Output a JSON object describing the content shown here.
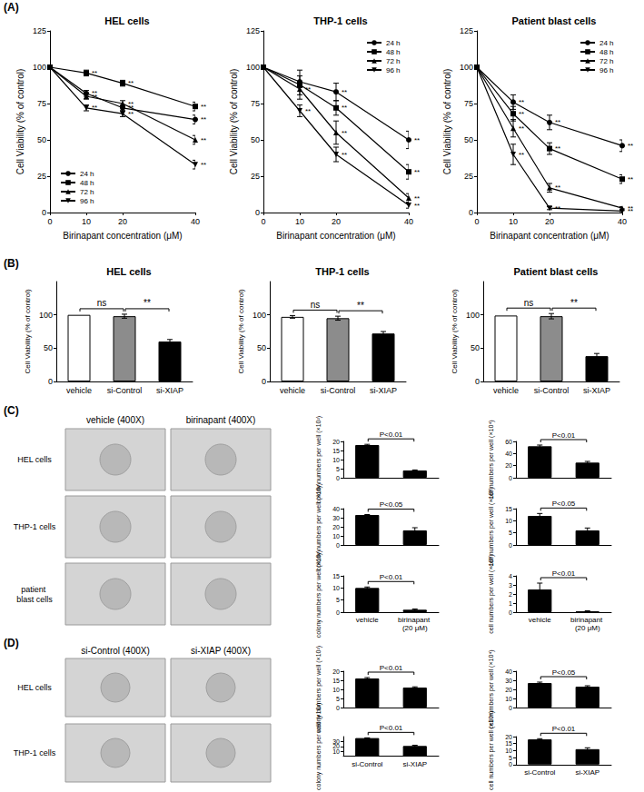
{
  "panel_labels": [
    "(A)",
    "(B)",
    "(C)",
    "(D)"
  ],
  "image_grids": [
    {
      "columns": [
        "vehicle (400X)",
        "birinapant (400X)"
      ],
      "rows": [
        "HEL cells",
        "THP-1 cells",
        "patient blast cells"
      ]
    },
    {
      "columns": [
        "si-Control (400X)",
        "si-XIAP (400X)"
      ],
      "rows": [
        "HEL cells",
        "THP-1 cells"
      ]
    }
  ],
  "chart_data": [
    {
      "type": "line",
      "title": "HEL cells",
      "x_label": "Birinapant concentration (μM)",
      "y_label": "Cell Viability (% of control)",
      "x": [
        0,
        10,
        20,
        40
      ],
      "xlim": [
        0,
        40
      ],
      "xticks": [
        0,
        10,
        20,
        40
      ],
      "ylim": [
        0,
        125
      ],
      "yticks": [
        0,
        25,
        50,
        75,
        100,
        125
      ],
      "grid": false,
      "legend": "lower left",
      "series": [
        {
          "name": "24 h",
          "color": "#000000",
          "marker": "circle",
          "values": [
            100,
            82,
            72,
            64
          ],
          "errors": [
            0,
            2,
            2,
            3
          ],
          "significance": [
            null,
            "**",
            "**",
            "**"
          ]
        },
        {
          "name": "48 h",
          "color": "#000000",
          "marker": "square",
          "values": [
            100,
            96,
            89,
            73
          ],
          "errors": [
            0,
            2,
            2,
            3
          ],
          "significance": [
            null,
            "**",
            "**",
            "**"
          ]
        },
        {
          "name": "72 h",
          "color": "#000000",
          "marker": "triangle",
          "values": [
            100,
            80,
            75,
            50
          ],
          "errors": [
            0,
            2,
            2,
            3
          ],
          "significance": [
            null,
            "**",
            "**",
            "**"
          ]
        },
        {
          "name": "96 h",
          "color": "#000000",
          "marker": "triangle-down",
          "values": [
            100,
            72,
            68,
            33
          ],
          "errors": [
            0,
            2,
            2,
            3
          ],
          "significance": [
            null,
            "**",
            "**",
            "**"
          ]
        }
      ]
    },
    {
      "type": "line",
      "title": "THP-1 cells",
      "x_label": "Birinapant concentration (μM)",
      "y_label": "Cell Viability (% of control)",
      "x": [
        0,
        10,
        20,
        40
      ],
      "xlim": [
        0,
        40
      ],
      "xticks": [
        0,
        10,
        20,
        40
      ],
      "ylim": [
        0,
        125
      ],
      "yticks": [
        0,
        25,
        50,
        75,
        100,
        125
      ],
      "grid": false,
      "legend": "upper right",
      "series": [
        {
          "name": "24 h",
          "color": "#000000",
          "marker": "circle",
          "values": [
            100,
            90,
            83,
            50
          ],
          "errors": [
            0,
            4,
            6,
            6
          ],
          "significance": [
            null,
            null,
            "**",
            "**"
          ]
        },
        {
          "name": "48 h",
          "color": "#000000",
          "marker": "square",
          "values": [
            100,
            88,
            72,
            28
          ],
          "errors": [
            0,
            10,
            5,
            5
          ],
          "significance": [
            null,
            null,
            "**",
            "**"
          ]
        },
        {
          "name": "72 h",
          "color": "#000000",
          "marker": "triangle",
          "values": [
            100,
            85,
            55,
            10
          ],
          "errors": [
            0,
            4,
            8,
            3
          ],
          "significance": [
            null,
            "**",
            "**",
            "**"
          ]
        },
        {
          "name": "96 h",
          "color": "#000000",
          "marker": "triangle-down",
          "values": [
            100,
            70,
            40,
            5
          ],
          "errors": [
            0,
            4,
            5,
            2
          ],
          "significance": [
            null,
            "**",
            "**",
            "**"
          ]
        }
      ]
    },
    {
      "type": "line",
      "title": "Patient blast cells",
      "x_label": "Birinapant concentration (μM)",
      "y_label": "Cell Viability (% of control)",
      "x": [
        0,
        10,
        20,
        40
      ],
      "xlim": [
        0,
        40
      ],
      "xticks": [
        0,
        10,
        20,
        40
      ],
      "ylim": [
        0,
        125
      ],
      "yticks": [
        0,
        25,
        50,
        75,
        100,
        125
      ],
      "grid": false,
      "legend": "upper right",
      "series": [
        {
          "name": "24 h",
          "color": "#000000",
          "marker": "circle",
          "values": [
            100,
            76,
            62,
            46
          ],
          "errors": [
            0,
            5,
            5,
            4
          ],
          "significance": [
            null,
            "**",
            "**",
            "**"
          ]
        },
        {
          "name": "48 h",
          "color": "#000000",
          "marker": "square",
          "values": [
            100,
            68,
            44,
            23
          ],
          "errors": [
            0,
            5,
            4,
            3
          ],
          "significance": [
            null,
            "**",
            "**",
            "**"
          ]
        },
        {
          "name": "72 h",
          "color": "#000000",
          "marker": "triangle",
          "values": [
            100,
            58,
            17,
            3
          ],
          "errors": [
            0,
            6,
            3,
            1
          ],
          "significance": [
            null,
            "**",
            "**",
            "**"
          ]
        },
        {
          "name": "96 h",
          "color": "#000000",
          "marker": "triangle-down",
          "values": [
            100,
            40,
            3,
            1
          ],
          "errors": [
            0,
            7,
            1,
            1
          ],
          "significance": [
            null,
            "**",
            "**",
            "**"
          ]
        }
      ]
    },
    {
      "type": "bar",
      "title": "HEL cells",
      "y_label": "Cell Viability (% of control)",
      "categories": [
        "vehicle",
        "si-Control",
        "si-XIAP"
      ],
      "values": [
        100,
        98,
        60
      ],
      "errors": [
        0,
        3,
        3
      ],
      "colors": [
        "#ffffff",
        "#8c8c8c",
        "#000000"
      ],
      "ylim": [
        0,
        150
      ],
      "yticks": [
        0,
        50,
        100
      ],
      "grid": false,
      "comparisons": [
        {
          "pair": [
            "vehicle",
            "si-Control"
          ],
          "label": "ns"
        },
        {
          "pair": [
            "si-Control",
            "si-XIAP"
          ],
          "label": "**"
        }
      ]
    },
    {
      "type": "bar",
      "title": "THP-1 cells",
      "y_label": "Cell Viability (% of control)",
      "categories": [
        "vehicle",
        "si-Control",
        "si-XIAP"
      ],
      "values": [
        97,
        95,
        72
      ],
      "errors": [
        2,
        3,
        3
      ],
      "colors": [
        "#ffffff",
        "#8c8c8c",
        "#000000"
      ],
      "ylim": [
        0,
        150
      ],
      "yticks": [
        0,
        50,
        100
      ],
      "grid": false,
      "comparisons": [
        {
          "pair": [
            "vehicle",
            "si-Control"
          ],
          "label": "ns"
        },
        {
          "pair": [
            "si-Control",
            "si-XIAP"
          ],
          "label": "**"
        }
      ]
    },
    {
      "type": "bar",
      "title": "Patient blast cells",
      "y_label": "Cell Viability (% of control)",
      "categories": [
        "vehicle",
        "si-Control",
        "si-XIAP"
      ],
      "values": [
        99,
        98,
        38
      ],
      "errors": [
        0,
        4,
        4
      ],
      "colors": [
        "#ffffff",
        "#8c8c8c",
        "#000000"
      ],
      "ylim": [
        0,
        150
      ],
      "yticks": [
        0,
        50,
        100
      ],
      "grid": false,
      "comparisons": [
        {
          "pair": [
            "vehicle",
            "si-Control"
          ],
          "label": "ns"
        },
        {
          "pair": [
            "si-Control",
            "si-XIAP"
          ],
          "label": "**"
        }
      ]
    },
    {
      "type": "bar",
      "y_label": "colony numbers per well (×10²)",
      "categories": [
        "vehicle",
        "birinapant (20 μM)"
      ],
      "values": [
        18,
        4
      ],
      "errors": [
        0.4,
        0.3
      ],
      "color": "#000000",
      "ylim": [
        0,
        20
      ],
      "yticks": [
        0,
        5,
        10,
        15,
        20
      ],
      "grid": false,
      "tick_labels": "y",
      "comparisons": [
        {
          "pair": [
            "vehicle",
            "birinapant (20 μM)"
          ],
          "label": "P<0.01"
        }
      ]
    },
    {
      "type": "bar",
      "y_label": "cell numbers per well (×10⁴)",
      "categories": [
        "vehicle",
        "birinapant (20 μM)"
      ],
      "values": [
        52,
        25
      ],
      "errors": [
        2,
        2
      ],
      "color": "#000000",
      "ylim": [
        0,
        60
      ],
      "yticks": [
        0,
        20,
        40,
        60
      ],
      "grid": false,
      "tick_labels": "y",
      "comparisons": [
        {
          "pair": [
            "vehicle",
            "birinapant (20 μM)"
          ],
          "label": "P<0.01"
        }
      ]
    },
    {
      "type": "bar",
      "y_label": "colony numbers per well (×10²)",
      "categories": [
        "vehicle",
        "birinapant (20 μM)"
      ],
      "values": [
        33,
        16
      ],
      "errors": [
        0.5,
        3
      ],
      "color": "#000000",
      "ylim": [
        0,
        40
      ],
      "yticks": [
        0,
        10,
        20,
        30,
        40
      ],
      "grid": false,
      "tick_labels": "y",
      "comparisons": [
        {
          "pair": [
            "vehicle",
            "birinapant (20 μM)"
          ],
          "label": "P<0.05"
        }
      ]
    },
    {
      "type": "bar",
      "y_label": "cell numbers per well (×10⁴)",
      "categories": [
        "vehicle",
        "birinapant (20 μM)"
      ],
      "values": [
        12,
        6
      ],
      "errors": [
        1,
        1
      ],
      "color": "#000000",
      "ylim": [
        0,
        15
      ],
      "yticks": [
        0,
        5,
        10,
        15
      ],
      "grid": false,
      "tick_labels": "y",
      "comparisons": [
        {
          "pair": [
            "vehicle",
            "birinapant (20 μM)"
          ],
          "label": "P<0.05"
        }
      ]
    },
    {
      "type": "bar",
      "y_label": "colony numbers per well (×10²)",
      "categories": [
        "vehicle",
        "birinapant (20 μM)"
      ],
      "values": [
        10,
        1
      ],
      "errors": [
        0.4,
        0.3
      ],
      "color": "#000000",
      "ylim": [
        0,
        15
      ],
      "yticks": [
        0,
        5,
        10,
        15
      ],
      "grid": false,
      "comparisons": [
        {
          "pair": [
            "vehicle",
            "birinapant (20 μM)"
          ],
          "label": "P<0.01"
        }
      ]
    },
    {
      "type": "bar",
      "y_label": "cell numbers per well (×10⁴)",
      "categories": [
        "vehicle",
        "birinapant (20 μM)"
      ],
      "values": [
        2.5,
        0.1
      ],
      "errors": [
        0.7,
        0.05
      ],
      "color": "#000000",
      "ylim": [
        0,
        4
      ],
      "yticks": [
        0,
        1,
        2,
        3,
        4
      ],
      "grid": false,
      "comparisons": [
        {
          "pair": [
            "vehicle",
            "birinapant (20 μM)"
          ],
          "label": "P<0.01"
        }
      ]
    },
    {
      "type": "bar",
      "y_label": "colony numbers per well (×10²)",
      "categories": [
        "si-Control",
        "si-XIAP"
      ],
      "values": [
        16,
        11
      ],
      "errors": [
        0.5,
        0.4
      ],
      "color": "#000000",
      "ylim": [
        0,
        20
      ],
      "yticks": [
        0,
        5,
        10,
        15,
        20
      ],
      "grid": false,
      "tick_labels": "y",
      "comparisons": [
        {
          "pair": [
            "si-Control",
            "si-XIAP"
          ],
          "label": "P<0.01"
        }
      ]
    },
    {
      "type": "bar",
      "y_label": "cell numbers per well (×10⁴)",
      "categories": [
        "si-Control",
        "si-XIAP"
      ],
      "values": [
        27,
        23
      ],
      "errors": [
        1,
        1
      ],
      "color": "#000000",
      "ylim": [
        0,
        40
      ],
      "yticks": [
        0,
        10,
        20,
        30,
        40
      ],
      "grid": false,
      "tick_labels": "y",
      "comparisons": [
        {
          "pair": [
            "si-Control",
            "si-XIAP"
          ],
          "label": "P<0.05"
        }
      ]
    },
    {
      "type": "bar",
      "y_label": "colony numbers per well (×10²)",
      "categories": [
        "si-Control",
        "si-XIAP"
      ],
      "values": [
        37,
        21
      ],
      "errors": [
        0.5,
        1.5
      ],
      "color": "#000000",
      "ylim": [
        0,
        40
      ],
      "yticks": [
        0,
        10,
        20,
        30,
        40
      ],
      "grid": false,
      "comparisons": [
        {
          "pair": [
            "si-Control",
            "si-XIAP"
          ],
          "label": "P<0.01"
        }
      ]
    },
    {
      "type": "bar",
      "y_label": "cell numbers per well (×10⁴)",
      "categories": [
        "si-Control",
        "si-XIAP"
      ],
      "values": [
        18,
        11
      ],
      "errors": [
        0.5,
        1
      ],
      "color": "#000000",
      "ylim": [
        0,
        20
      ],
      "yticks": [
        0,
        5,
        10,
        15,
        20
      ],
      "grid": false,
      "comparisons": [
        {
          "pair": [
            "si-Control",
            "si-XIAP"
          ],
          "label": "P<0.01"
        }
      ]
    }
  ]
}
